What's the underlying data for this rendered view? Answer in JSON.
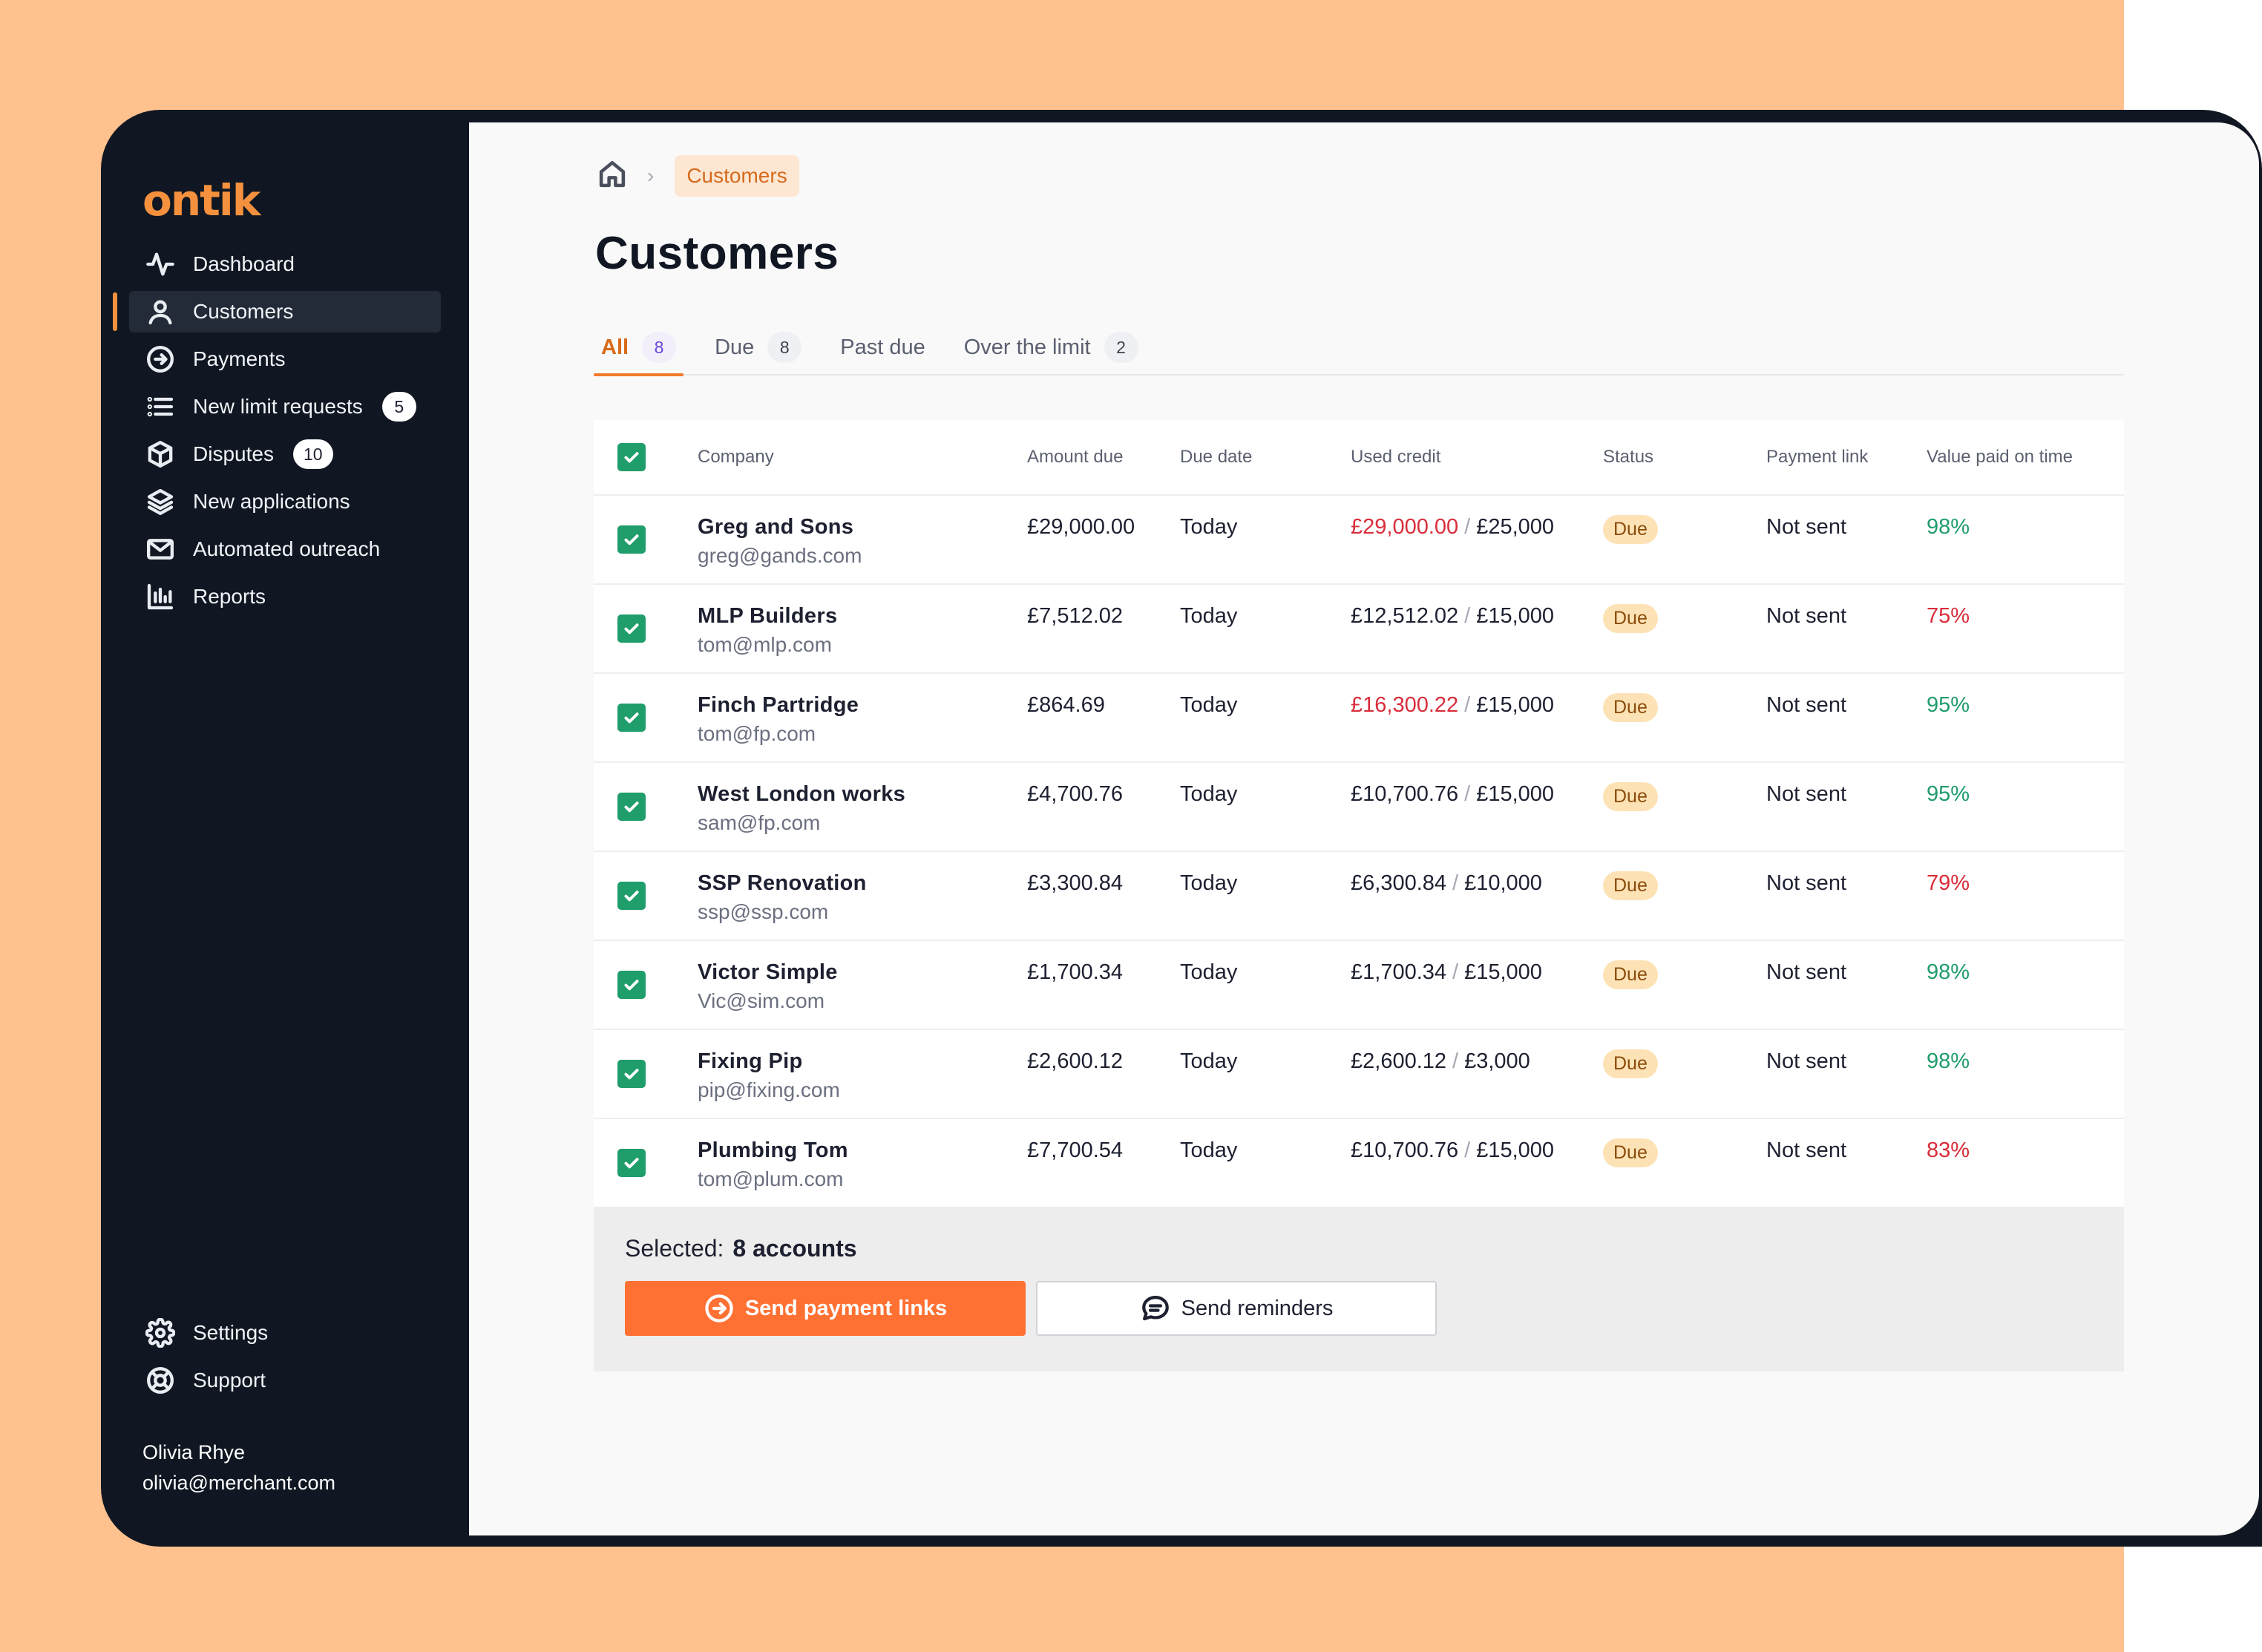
{
  "app": {
    "logo": "ontik"
  },
  "sidebar": {
    "items": [
      {
        "label": "Dashboard",
        "icon": "activity-icon",
        "active": false
      },
      {
        "label": "Customers",
        "icon": "user-icon",
        "active": true
      },
      {
        "label": "Payments",
        "icon": "arrow-circle-icon",
        "active": false
      },
      {
        "label": "New limit requests",
        "icon": "list-icon",
        "badge": "5"
      },
      {
        "label": "Disputes",
        "icon": "box-icon",
        "badge": "10"
      },
      {
        "label": "New applications",
        "icon": "layers-icon"
      },
      {
        "label": "Automated outreach",
        "icon": "mail-icon"
      },
      {
        "label": "Reports",
        "icon": "bar-chart-icon"
      }
    ],
    "bottom": [
      {
        "label": "Settings",
        "icon": "gear-icon"
      },
      {
        "label": "Support",
        "icon": "lifebuoy-icon"
      }
    ],
    "user": {
      "name": "Olivia Rhye",
      "email": "olivia@merchant.com"
    }
  },
  "breadcrumb": {
    "current": "Customers"
  },
  "page": {
    "title": "Customers"
  },
  "tabs": [
    {
      "label": "All",
      "count": "8",
      "active": true
    },
    {
      "label": "Due",
      "count": "8"
    },
    {
      "label": "Past due",
      "count": ""
    },
    {
      "label": "Over the limit",
      "count": "2"
    }
  ],
  "table": {
    "headers": {
      "company": "Company",
      "amount": "Amount due",
      "date": "Due date",
      "credit": "Used credit",
      "status": "Status",
      "link": "Payment link",
      "value": "Value paid on time"
    },
    "rows": [
      {
        "company": "Greg and Sons",
        "email": "greg@gands.com",
        "amount": "£29,000.00",
        "date": "Today",
        "used": "£29,000.00",
        "used_over": true,
        "limit": "£25,000",
        "status": "Due",
        "link": "Not sent",
        "value": "98%",
        "value_good": true
      },
      {
        "company": "MLP Builders",
        "email": "tom@mlp.com",
        "amount": "£7,512.02",
        "date": "Today",
        "used": "£12,512.02",
        "used_over": false,
        "limit": "£15,000",
        "status": "Due",
        "link": "Not sent",
        "value": "75%",
        "value_good": false
      },
      {
        "company": "Finch Partridge",
        "email": "tom@fp.com",
        "amount": "£864.69",
        "date": "Today",
        "used": "£16,300.22",
        "used_over": true,
        "limit": "£15,000",
        "status": "Due",
        "link": "Not sent",
        "value": "95%",
        "value_good": true
      },
      {
        "company": "West London works",
        "email": "sam@fp.com",
        "amount": "£4,700.76",
        "date": "Today",
        "used": "£10,700.76",
        "used_over": false,
        "limit": "£15,000",
        "status": "Due",
        "link": "Not sent",
        "value": "95%",
        "value_good": true
      },
      {
        "company": "SSP Renovation",
        "email": "ssp@ssp.com",
        "amount": "£3,300.84",
        "date": "Today",
        "used": "£6,300.84",
        "used_over": false,
        "limit": "£10,000",
        "status": "Due",
        "link": "Not sent",
        "value": "79%",
        "value_good": false
      },
      {
        "company": "Victor Simple",
        "email": "Vic@sim.com",
        "amount": "£1,700.34",
        "date": "Today",
        "used": "£1,700.34",
        "used_over": false,
        "limit": "£15,000",
        "status": "Due",
        "link": "Not sent",
        "value": "98%",
        "value_good": true
      },
      {
        "company": "Fixing Pip",
        "email": "pip@fixing.com",
        "amount": "£2,600.12",
        "date": "Today",
        "used": "£2,600.12",
        "used_over": false,
        "limit": "£3,000",
        "status": "Due",
        "link": "Not sent",
        "value": "98%",
        "value_good": true
      },
      {
        "company": "Plumbing Tom",
        "email": "tom@plum.com",
        "amount": "£7,700.54",
        "date": "Today",
        "used": "£10,700.76",
        "used_over": false,
        "limit": "£15,000",
        "status": "Due",
        "link": "Not sent",
        "value": "83%",
        "value_good": false
      }
    ]
  },
  "selection": {
    "label": "Selected:",
    "count_text": "8 accounts",
    "primary_button": "Send payment links",
    "secondary_button": "Send reminders"
  },
  "colors": {
    "accent": "#f5913e",
    "primary_button": "#ff7133",
    "sidebar_bg": "#101722",
    "page_bg": "#ffc18e",
    "check_green": "#1f9d6b",
    "over_red": "#d92d3a"
  }
}
